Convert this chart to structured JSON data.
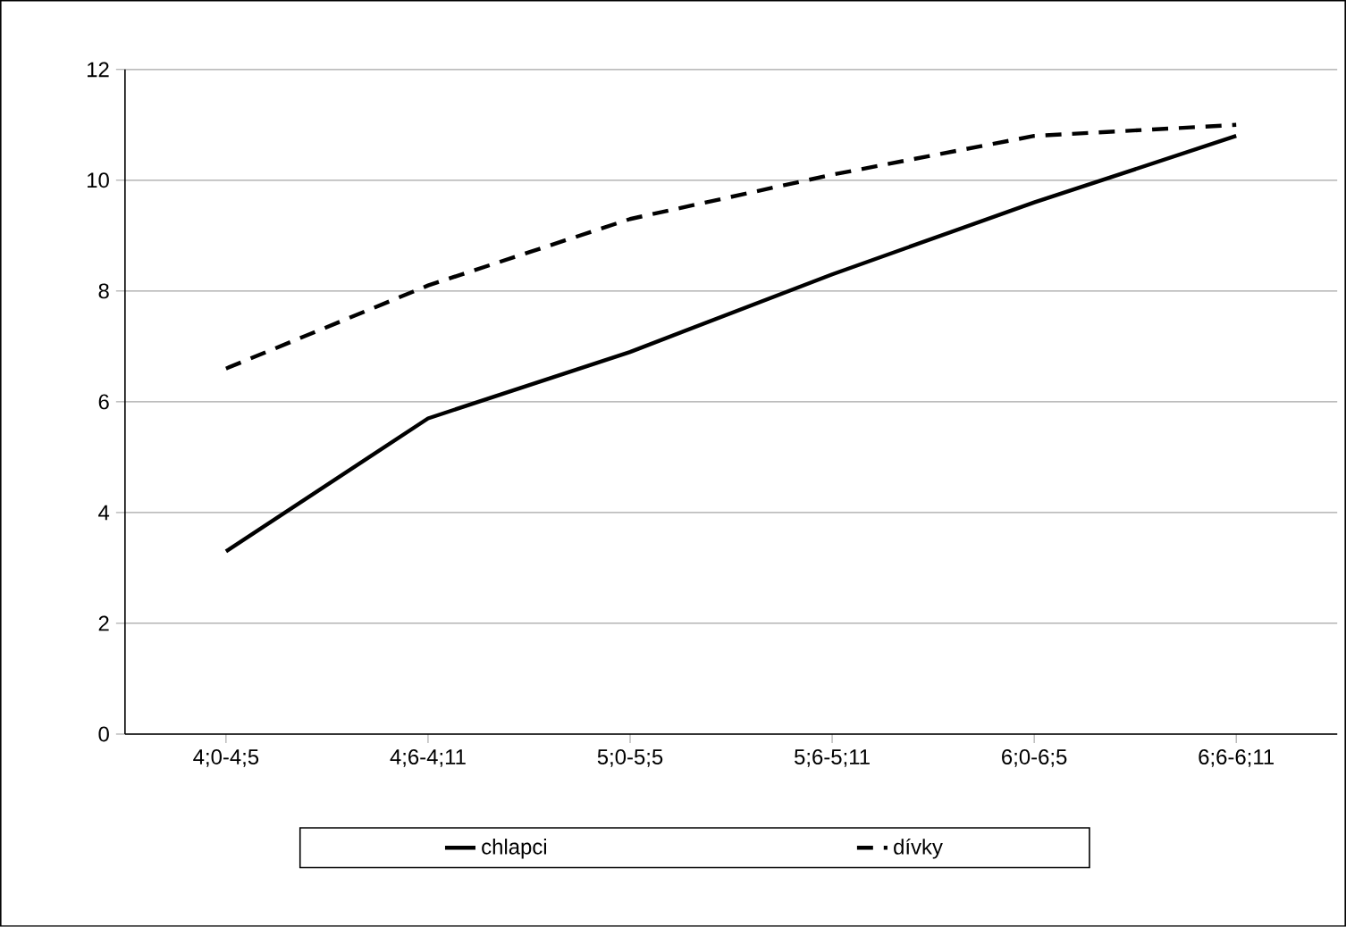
{
  "chart_data": {
    "type": "line",
    "categories": [
      "4;0-4;5",
      "4;6-4;11",
      "5;0-5;5",
      "5;6-5;11",
      "6;0-6;5",
      "6;6-6;11"
    ],
    "series": [
      {
        "name": "chlapci",
        "color": "#000000",
        "line_style": "solid",
        "values": [
          3.3,
          5.7,
          6.9,
          8.3,
          9.6,
          10.8
        ]
      },
      {
        "name": "dívky",
        "color": "#000000",
        "line_style": "dashed",
        "values": [
          6.6,
          8.1,
          9.3,
          10.1,
          10.8,
          11.0
        ]
      }
    ],
    "ylim": [
      0,
      12
    ],
    "yticks": [
      0,
      2,
      4,
      6,
      8,
      10,
      12
    ],
    "grid": "y",
    "legend": "bottom"
  }
}
